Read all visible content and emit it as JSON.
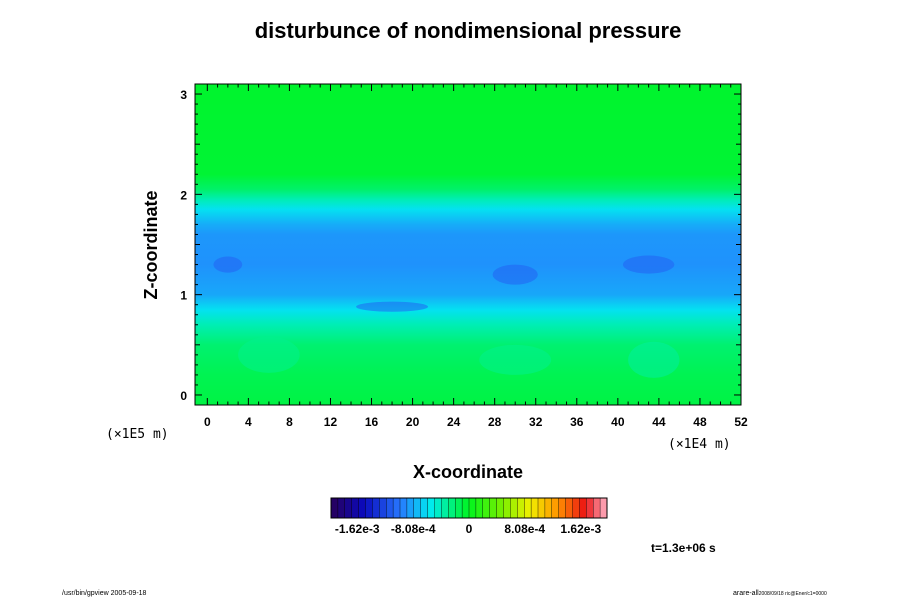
{
  "chart_data": {
    "type": "heatmap",
    "title": "disturbunce of nondimensional pressure",
    "xlabel": "X-coordinate",
    "ylabel": "Z-coordinate",
    "x_unit": "(×1E4 m)",
    "y_unit": "(×1E5 m)",
    "xlim": [
      -1.2,
      52
    ],
    "ylim": [
      -0.1,
      3.1
    ],
    "x_ticks": [
      "0",
      "4",
      "8",
      "12",
      "16",
      "20",
      "24",
      "28",
      "32",
      "36",
      "40",
      "44",
      "48",
      "52"
    ],
    "y_ticks": [
      "0",
      "1",
      "2",
      "3"
    ],
    "z_profile_description_values": {
      "z": [
        3.1,
        2.2,
        2.05,
        1.95,
        1.85,
        1.7,
        1.6,
        1.3,
        1.0,
        0.85,
        0.7,
        0.5,
        0.2,
        -0.1
      ],
      "value": [
        -4e-05,
        -6e-05,
        -0.0002,
        -0.0004,
        -0.0006,
        -0.0008,
        -0.00088,
        -0.0009,
        -0.00082,
        -0.0006,
        -0.0004,
        -0.00022,
        -0.00014,
        -0.0001
      ]
    },
    "colorbar": {
      "range": [
        -0.002,
        0.002
      ],
      "tick_values": [
        -0.00162,
        -0.000808,
        0,
        0.000808,
        0.00162
      ],
      "tick_labels": [
        "-1.62e-3",
        "-8.08e-4",
        "0",
        "8.08e-4",
        "1.62e-3"
      ],
      "steps": 40
    },
    "time_label": "t=1.3e+06 s"
  },
  "footer": {
    "left": "/usr/bin/gpview 2005-09-18",
    "right_main": "arare-all",
    "right_small": "2008/09/18 ric@Ener/c1=0000"
  }
}
